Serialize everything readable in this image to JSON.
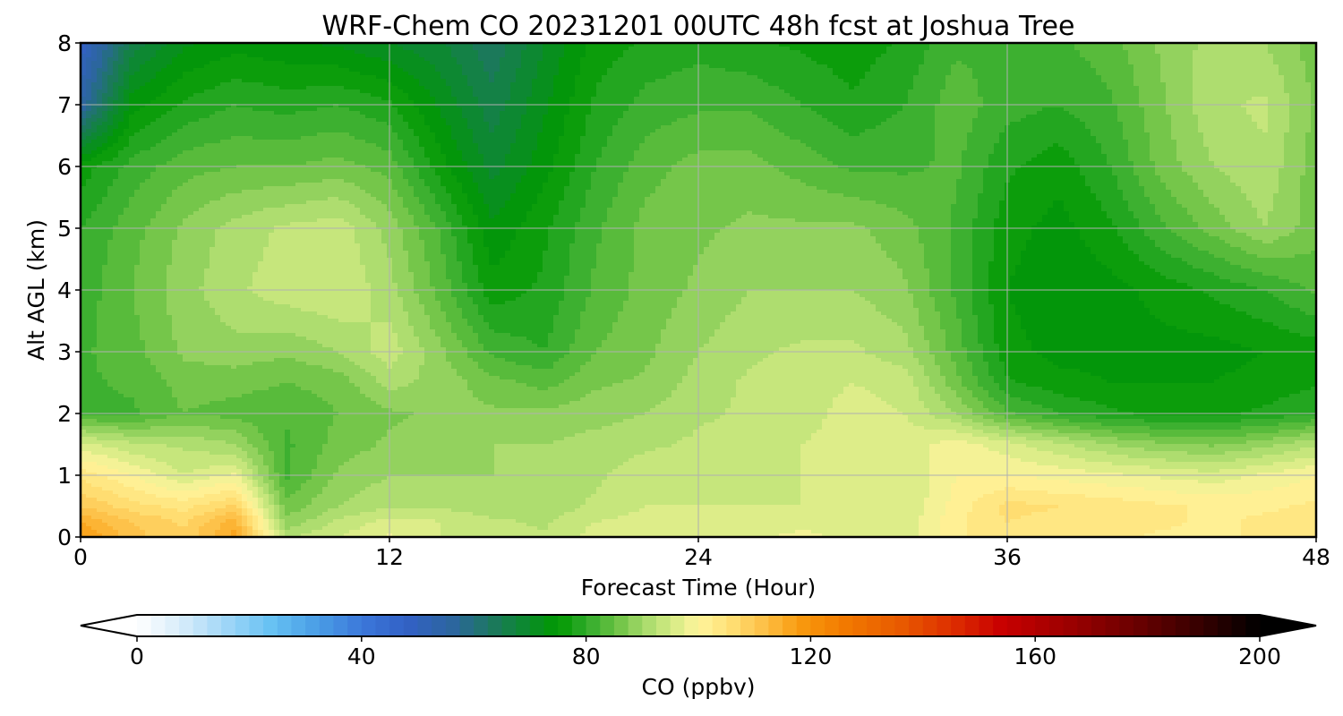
{
  "chart_data": {
    "type": "heatmap",
    "title": "WRF-Chem CO  20231201 00UTC 48h fcst at Joshua Tree",
    "xlabel": "Forecast Time (Hour)",
    "ylabel": "Alt AGL (km)",
    "xlim": [
      0,
      48
    ],
    "ylim": [
      0,
      8
    ],
    "xticks": [
      0,
      12,
      24,
      36,
      48
    ],
    "yticks": [
      0,
      1,
      2,
      3,
      4,
      5,
      6,
      7,
      8
    ],
    "grid": true,
    "colorbar": {
      "label": "CO  (ppbv)",
      "range": [
        0,
        200
      ],
      "ticks": [
        0,
        40,
        80,
        120,
        160,
        200
      ],
      "extend": "both",
      "colors": [
        {
          "v": 0,
          "c": "#ffffff"
        },
        {
          "v": 8,
          "c": "#d6ecfa"
        },
        {
          "v": 16,
          "c": "#9fd6f7"
        },
        {
          "v": 24,
          "c": "#66c1f3"
        },
        {
          "v": 32,
          "c": "#4a9ee6"
        },
        {
          "v": 40,
          "c": "#3c78da"
        },
        {
          "v": 48,
          "c": "#3261c5"
        },
        {
          "v": 56,
          "c": "#2d65a0"
        },
        {
          "v": 64,
          "c": "#1a7a58"
        },
        {
          "v": 70,
          "c": "#0a8c28"
        },
        {
          "v": 75,
          "c": "#009900"
        },
        {
          "v": 80,
          "c": "#2faa2a"
        },
        {
          "v": 85,
          "c": "#66c040"
        },
        {
          "v": 90,
          "c": "#a2d868"
        },
        {
          "v": 95,
          "c": "#d2ea82"
        },
        {
          "v": 100,
          "c": "#fff59d"
        },
        {
          "v": 106,
          "c": "#ffde73"
        },
        {
          "v": 112,
          "c": "#fdbe44"
        },
        {
          "v": 118,
          "c": "#f99a0e"
        },
        {
          "v": 126,
          "c": "#f27a00"
        },
        {
          "v": 136,
          "c": "#e85a00"
        },
        {
          "v": 146,
          "c": "#dc2a00"
        },
        {
          "v": 154,
          "c": "#c80000"
        },
        {
          "v": 166,
          "c": "#9c0000"
        },
        {
          "v": 178,
          "c": "#6a0000"
        },
        {
          "v": 190,
          "c": "#330000"
        },
        {
          "v": 200,
          "c": "#000000"
        }
      ]
    },
    "x": [
      0,
      2,
      4,
      6,
      8,
      10,
      12,
      14,
      16,
      18,
      20,
      22,
      24,
      26,
      28,
      30,
      32,
      34,
      36,
      38,
      40,
      42,
      44,
      46,
      48
    ],
    "y": [
      0,
      0.25,
      0.5,
      1,
      1.5,
      2,
      2.5,
      3,
      4,
      5,
      6,
      7,
      8
    ],
    "z": [
      [
        118,
        111,
        108,
        116,
        92,
        95,
        98,
        95,
        94,
        93,
        96,
        97,
        96,
        97,
        98,
        97,
        96,
        102,
        104,
        103,
        103,
        102,
        102,
        103,
        104
      ],
      [
        115,
        110,
        107,
        114,
        88,
        93,
        96,
        95,
        93,
        92,
        95,
        96,
        96,
        96,
        97,
        96,
        96,
        102,
        105,
        104,
        104,
        103,
        102,
        103,
        104
      ],
      [
        110,
        106,
        104,
        108,
        86,
        90,
        92,
        92,
        91,
        91,
        93,
        95,
        95,
        95,
        95,
        95,
        95,
        101,
        106,
        105,
        104,
        103,
        102,
        102,
        103
      ],
      [
        104,
        100,
        95,
        98,
        82,
        88,
        90,
        90,
        90,
        91,
        92,
        94,
        94,
        94,
        95,
        96,
        95,
        100,
        100,
        99,
        98,
        97,
        96,
        98,
        100
      ],
      [
        96,
        93,
        92,
        90,
        82,
        86,
        88,
        89,
        90,
        90,
        91,
        92,
        93,
        94,
        95,
        96,
        96,
        99,
        96,
        93,
        90,
        88,
        87,
        89,
        92
      ],
      [
        82,
        82,
        85,
        84,
        83,
        85,
        87,
        88,
        88,
        88,
        89,
        90,
        92,
        93,
        94,
        96,
        95,
        90,
        83,
        80,
        78,
        77,
        77,
        78,
        80
      ],
      [
        82,
        83,
        86,
        86,
        85,
        86,
        91,
        89,
        86,
        84,
        87,
        88,
        91,
        93,
        94,
        95,
        94,
        86,
        78,
        76,
        75,
        75,
        75,
        76,
        77
      ],
      [
        82,
        84,
        88,
        89,
        88,
        90,
        94,
        88,
        82,
        80,
        85,
        87,
        90,
        92,
        93,
        93,
        91,
        84,
        76,
        74,
        74,
        74,
        74,
        75,
        76
      ],
      [
        81,
        85,
        89,
        92,
        94,
        95,
        91,
        84,
        76,
        78,
        83,
        86,
        88,
        90,
        90,
        90,
        88,
        82,
        75,
        73,
        74,
        76,
        78,
        80,
        83
      ],
      [
        80,
        84,
        88,
        91,
        93,
        94,
        89,
        82,
        73,
        77,
        82,
        86,
        87,
        88,
        88,
        88,
        86,
        82,
        76,
        74,
        77,
        82,
        86,
        90,
        86
      ],
      [
        76,
        81,
        84,
        85,
        85,
        86,
        84,
        76,
        69,
        74,
        80,
        84,
        86,
        86,
        84,
        82,
        82,
        83,
        78,
        76,
        80,
        86,
        90,
        92,
        86
      ],
      [
        55,
        74,
        78,
        80,
        79,
        80,
        78,
        72,
        66,
        72,
        78,
        81,
        82,
        82,
        80,
        78,
        80,
        84,
        81,
        80,
        82,
        87,
        92,
        93,
        87
      ],
      [
        48,
        66,
        72,
        74,
        73,
        72,
        70,
        68,
        63,
        70,
        76,
        78,
        79,
        78,
        77,
        76,
        78,
        82,
        82,
        82,
        84,
        88,
        91,
        90,
        86
      ]
    ]
  }
}
